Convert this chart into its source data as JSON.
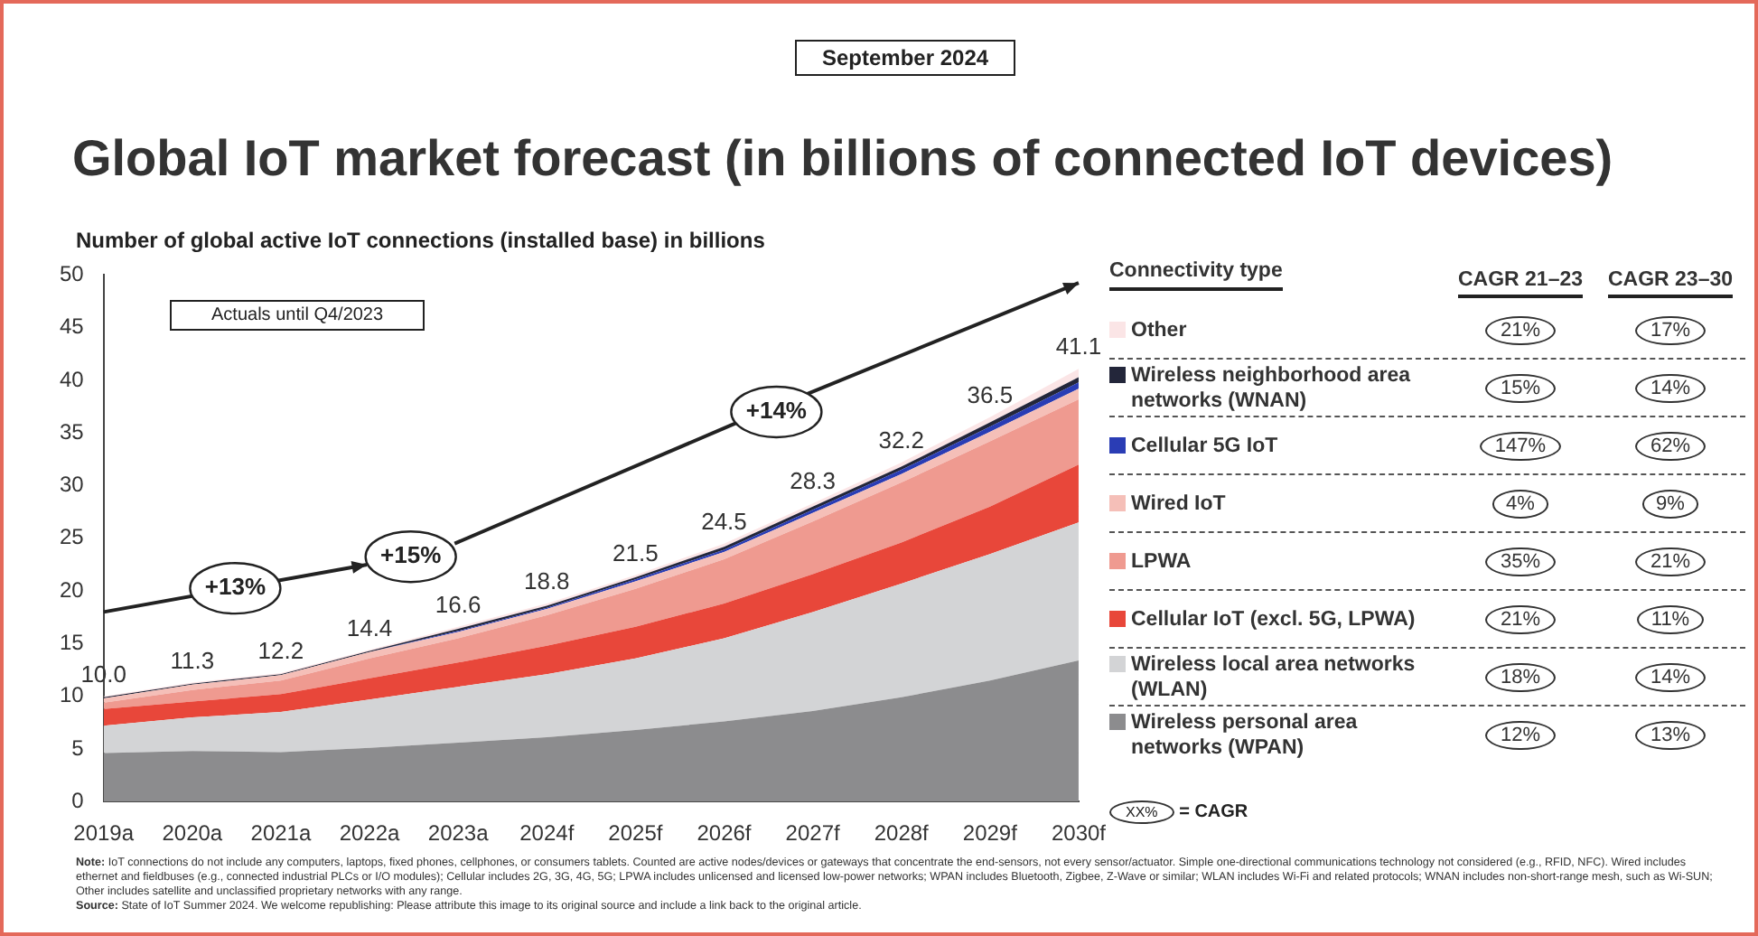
{
  "chart_data": {
    "type": "area",
    "stacked": true,
    "title": "Global IoT market forecast (in billions of connected IoT devices)",
    "subtitle": "Number of global active IoT connections (installed base) in billions",
    "legend_title": "Connectivity type",
    "categories": [
      "2019a",
      "2020a",
      "2021a",
      "2022a",
      "2023a",
      "2024f",
      "2025f",
      "2026f",
      "2027f",
      "2028f",
      "2029f",
      "2030f"
    ],
    "series": [
      {
        "name": "Wireless personal area networks (WPAN)",
        "color": "#8c8c8e",
        "values": [
          4.6,
          4.8,
          4.7,
          5.1,
          5.6,
          6.1,
          6.8,
          7.6,
          8.6,
          9.9,
          11.5,
          13.4
        ]
      },
      {
        "name": "Wireless local area networks (WLAN)",
        "color": "#d3d4d6",
        "values": [
          2.6,
          3.2,
          3.8,
          4.6,
          5.3,
          6.0,
          6.8,
          7.9,
          9.4,
          10.8,
          12.0,
          13.1
        ]
      },
      {
        "name": "Cellular IoT (excl. 5G, LPWA)",
        "color": "#e8473a",
        "values": [
          1.6,
          1.5,
          1.7,
          2.0,
          2.3,
          2.7,
          3.0,
          3.3,
          3.6,
          3.9,
          4.5,
          5.5
        ]
      },
      {
        "name": "LPWA",
        "color": "#ef9a90",
        "values": [
          0.6,
          1.1,
          1.3,
          1.9,
          2.3,
          2.9,
          3.6,
          4.2,
          5.0,
          5.7,
          6.2,
          6.2
        ]
      },
      {
        "name": "Wired IoT",
        "color": "#f5bfb8",
        "values": [
          0.4,
          0.5,
          0.5,
          0.6,
          0.6,
          0.6,
          0.7,
          0.7,
          0.8,
          0.8,
          0.9,
          1.0
        ]
      },
      {
        "name": "Cellular 5G IoT",
        "color": "#2a3db5",
        "values": [
          0.0,
          0.0,
          0.0,
          0.0,
          0.1,
          0.1,
          0.2,
          0.2,
          0.3,
          0.4,
          0.5,
          0.6
        ]
      },
      {
        "name": "Wireless neighborhood area networks (WNAN)",
        "color": "#23263a",
        "values": [
          0.1,
          0.1,
          0.1,
          0.1,
          0.2,
          0.2,
          0.2,
          0.3,
          0.3,
          0.3,
          0.4,
          0.5
        ]
      },
      {
        "name": "Other",
        "color": "#fbe5e6",
        "values": [
          0.1,
          0.1,
          0.1,
          0.1,
          0.2,
          0.2,
          0.2,
          0.3,
          0.3,
          0.4,
          0.5,
          0.8
        ]
      }
    ],
    "totals": [
      "10.0",
      "11.3",
      "12.2",
      "14.4",
      "16.6",
      "18.8",
      "21.5",
      "24.5",
      "28.3",
      "32.2",
      "36.5",
      "41.1"
    ],
    "ylim": [
      0,
      50
    ],
    "yticks": [
      0,
      5,
      10,
      15,
      20,
      25,
      30,
      35,
      40,
      45,
      50
    ],
    "grid": false,
    "legend": "right",
    "annotations": [
      "September 2024",
      "Actuals until Q4/2023",
      "+13%",
      "+15%",
      "+14%",
      "CAGR 21–23",
      "CAGR 23–30",
      "21%",
      "17%",
      "15%",
      "14%",
      "147%",
      "62%",
      "4%",
      "9%",
      "35%",
      "21%",
      "21%",
      "11%",
      "18%",
      "14%",
      "12%",
      "13%",
      "XX%",
      "= CAGR",
      "Note: IoT connections do not include any computers, laptops, fixed phones, cellphones, or consumers tablets. Counted are active nodes/devices or gateways that concentrate the end-sensors, not every sensor/actuator. Simple one-directional communications technology not considered (e.g., RFID, NFC). Wired includes ethernet and fieldbuses (e.g., connected industrial PLCs or I/O modules); Cellular includes 2G, 3G, 4G, 5G; LPWA includes unlicensed and licensed low-power networks; WPAN includes Bluetooth, Zigbee, Z-Wave or similar; WLAN includes Wi-Fi and related protocols; WNAN includes non-short-range mesh, such as Wi-SUN; Other includes satellite and unclassified proprietary networks with any range.",
      "Source: State of IoT Summer 2024. We welcome republishing: Please attribute this image to its original source and include a link back to the original article."
    ]
  }
}
